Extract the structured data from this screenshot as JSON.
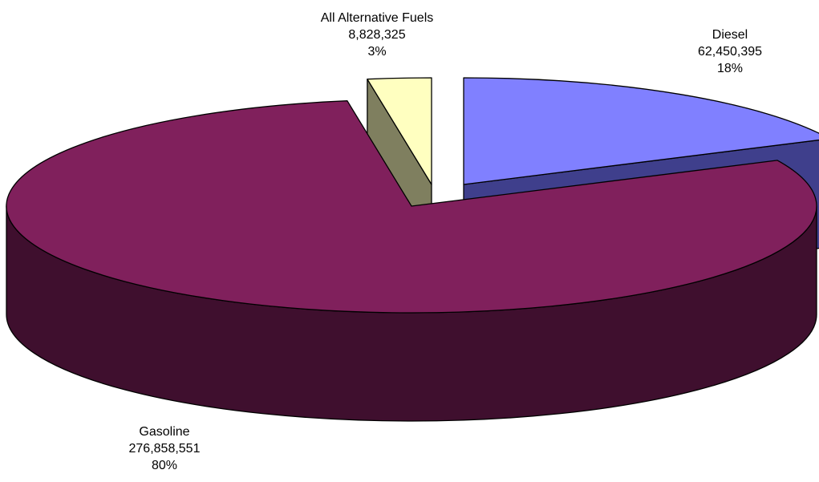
{
  "chart_data": {
    "type": "pie",
    "style": "3d-exploded",
    "slices": [
      {
        "name": "Diesel",
        "value": 62450395,
        "value_label": "62,450,395",
        "percent_label": "18%",
        "top_color": "#8080ff",
        "side_color": "#3f3f8c"
      },
      {
        "name": "Gasoline",
        "value": 276858551,
        "value_label": "276,858,551",
        "percent_label": "80%",
        "top_color": "#80205c",
        "side_color": "#3f0f2e"
      },
      {
        "name": "All Alternative Fuels",
        "value": 8828325,
        "value_label": "8,828,325",
        "percent_label": "3%",
        "top_color": "#ffffc0",
        "side_color": "#7f7f5f"
      }
    ],
    "legend": "none",
    "data_labels": "name, value, percent"
  }
}
